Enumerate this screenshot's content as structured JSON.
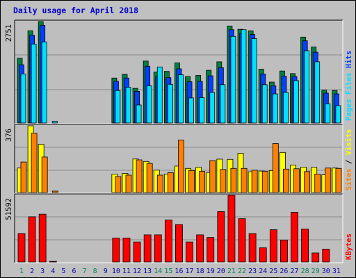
{
  "title": "Daily usage for April 2018",
  "colors": {
    "title": "#0000CC",
    "background": "#C0C0C0",
    "panel_bg": "#BEBEBE",
    "grid": "#8A8A8A",
    "hits": "#008040",
    "files": "#0040FF",
    "pages": "#00E0FF",
    "visits": "#FFFF00",
    "sites": "#FF8000",
    "kbytes": "#FF0000",
    "weekend": "#00805C",
    "weekday": "#0000AA"
  },
  "chart_data": [
    {
      "type": "bar",
      "panel": "top",
      "y_max_label": "2751",
      "ylim": [
        0,
        2751
      ],
      "grid": true,
      "legend_words": [
        "Pages",
        "Files",
        "Hits"
      ],
      "categories": [
        "1",
        "2",
        "3",
        "4",
        "5",
        "6",
        "7",
        "8",
        "9",
        "10",
        "11",
        "12",
        "13",
        "14",
        "15",
        "16",
        "17",
        "18",
        "19",
        "20",
        "21",
        "22",
        "23",
        "24",
        "25",
        "26",
        "27",
        "28",
        "29",
        "30",
        "31"
      ],
      "weekend_days": [
        "1",
        "7",
        "8",
        "14",
        "15",
        "21",
        "22",
        "28",
        "29"
      ],
      "series": [
        {
          "name": "Hits",
          "color_key": "hits",
          "values": [
            1758,
            2502,
            2751,
            0,
            0,
            0,
            0,
            0,
            0,
            1220,
            1320,
            940,
            1680,
            1380,
            1400,
            1630,
            1260,
            1290,
            1430,
            1660,
            2630,
            2541,
            2500,
            1460,
            1110,
            1410,
            1340,
            2330,
            2060,
            890,
            880
          ]
        },
        {
          "name": "Files",
          "color_key": "files",
          "values": [
            1580,
            2380,
            2650,
            0,
            0,
            0,
            0,
            0,
            0,
            1130,
            1220,
            860,
            1540,
            1260,
            1230,
            1470,
            1120,
            1130,
            1280,
            1500,
            2530,
            2430,
            2400,
            1330,
            1010,
            1270,
            1260,
            2230,
            1920,
            810,
            790
          ]
        },
        {
          "name": "Pages",
          "color_key": "pages",
          "values": [
            1330,
            2140,
            2200,
            50,
            0,
            0,
            0,
            0,
            0,
            880,
            970,
            490,
            1010,
            1520,
            1050,
            1310,
            680,
            690,
            830,
            1040,
            2350,
            2530,
            2290,
            1040,
            790,
            830,
            1150,
            1960,
            1660,
            520,
            470
          ]
        }
      ]
    },
    {
      "type": "bar",
      "panel": "middle",
      "y_max_label": "376",
      "ylim": [
        0,
        376
      ],
      "grid": true,
      "legend_words": [
        "Sites",
        "/",
        "Visits"
      ],
      "categories": [
        "1",
        "2",
        "3",
        "4",
        "5",
        "6",
        "7",
        "8",
        "9",
        "10",
        "11",
        "12",
        "13",
        "14",
        "15",
        "16",
        "17",
        "18",
        "19",
        "20",
        "21",
        "22",
        "23",
        "24",
        "25",
        "26",
        "27",
        "28",
        "29",
        "30",
        "31"
      ],
      "series": [
        {
          "name": "Visits",
          "color_key": "visits",
          "values": [
            138,
            376,
            272,
            0,
            0,
            0,
            0,
            0,
            0,
            104,
            108,
            189,
            175,
            126,
            104,
            149,
            136,
            142,
            113,
            188,
            187,
            221,
            117,
            121,
            124,
            226,
            155,
            143,
            142,
            100,
            138
          ]
        },
        {
          "name": "Sites",
          "color_key": "sites",
          "values": [
            172,
            334,
            200,
            8,
            0,
            0,
            0,
            0,
            0,
            90,
            98,
            184,
            164,
            98,
            112,
            296,
            124,
            119,
            180,
            130,
            136,
            136,
            126,
            120,
            276,
            132,
            134,
            118,
            104,
            138,
            136
          ]
        }
      ]
    },
    {
      "type": "bar",
      "panel": "bottom",
      "y_max_label": "51592",
      "ylim": [
        0,
        51592
      ],
      "grid": true,
      "legend_words": [
        "KBytes"
      ],
      "categories": [
        "1",
        "2",
        "3",
        "4",
        "5",
        "6",
        "7",
        "8",
        "9",
        "10",
        "11",
        "12",
        "13",
        "14",
        "15",
        "16",
        "17",
        "18",
        "19",
        "20",
        "21",
        "22",
        "23",
        "24",
        "25",
        "26",
        "27",
        "28",
        "29",
        "30",
        "31"
      ],
      "series": [
        {
          "name": "KBytes",
          "color_key": "kbytes",
          "values": [
            22000,
            35000,
            37000,
            500,
            0,
            0,
            0,
            0,
            0,
            18500,
            18500,
            15500,
            21000,
            21000,
            32500,
            29000,
            15500,
            21000,
            19000,
            39000,
            51592,
            33500,
            22000,
            11000,
            25000,
            17000,
            38500,
            25500,
            7000,
            10000,
            0
          ]
        }
      ]
    }
  ]
}
